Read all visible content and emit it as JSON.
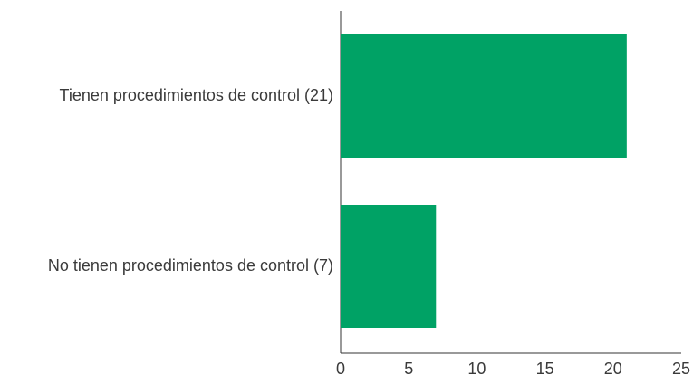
{
  "chart_data": {
    "type": "bar",
    "orientation": "horizontal",
    "categories": [
      "Tienen procedimientos de control (21)",
      "No tienen procedimientos de control (7)"
    ],
    "values": [
      21,
      7
    ],
    "xlim": [
      0,
      25
    ],
    "xticks": [
      "0",
      "5",
      "10",
      "15",
      "20",
      "25"
    ],
    "grid": false,
    "legend": "none",
    "bar_color": "#00a265",
    "axis_color": "#333333",
    "text_color": "#3a3a3a"
  }
}
